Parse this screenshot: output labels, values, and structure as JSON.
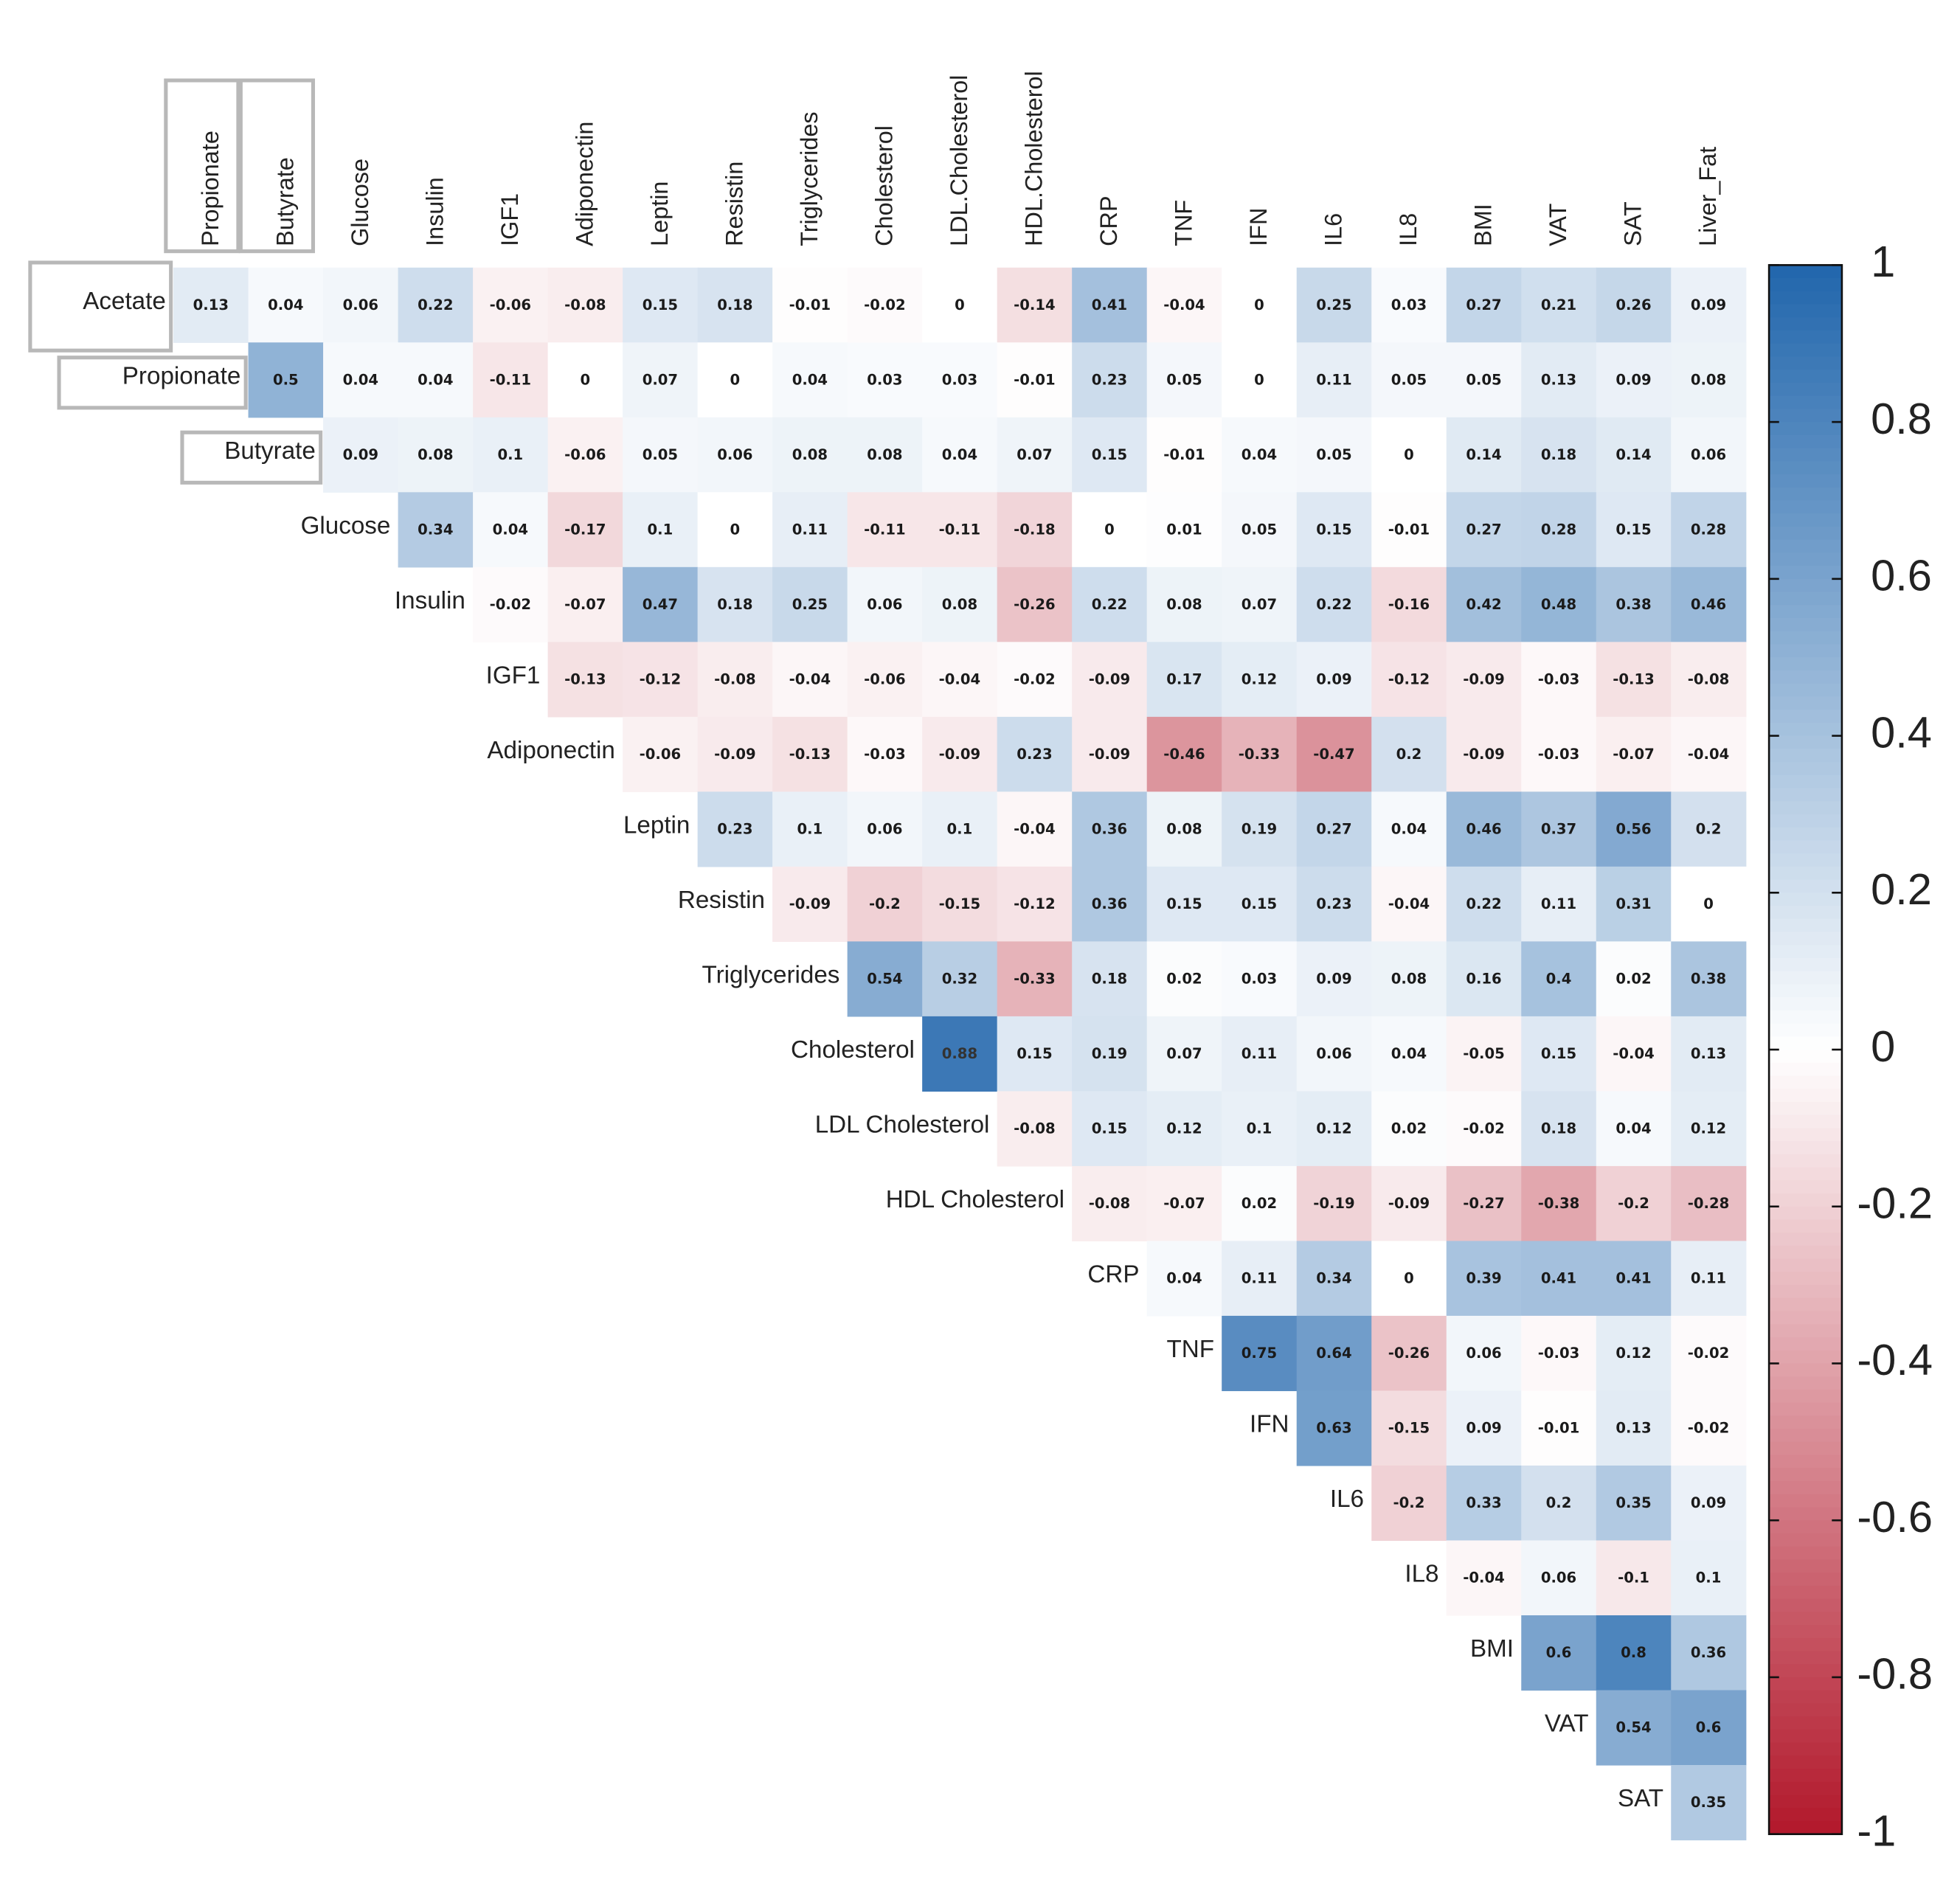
{
  "chart_data": {
    "type": "heatmap",
    "title": "",
    "columns": [
      "Propionate",
      "Butyrate",
      "Glucose",
      "Insulin",
      "IGF1",
      "Adiponectin",
      "Leptin",
      "Resistin",
      "Triglycerides",
      "Cholesterol",
      "LDL.Cholesterol",
      "HDL.Cholesterol",
      "CRP",
      "TNF",
      "IFN",
      "IL6",
      "IL8",
      "BMI",
      "VAT",
      "SAT",
      "Liver_Fat"
    ],
    "rows": [
      "Acetate",
      "Propionate",
      "Butyrate",
      "Glucose",
      "Insulin",
      "IGF1",
      "Adiponectin",
      "Leptin",
      "Resistin",
      "Triglycerides",
      "Cholesterol",
      "LDL Cholesterol",
      "HDL Cholesterol",
      "CRP",
      "TNF",
      "IFN",
      "IL6",
      "IL8",
      "BMI",
      "VAT",
      "SAT"
    ],
    "boxed_labels": {
      "columns": [
        "Propionate",
        "Butyrate"
      ],
      "rows": [
        "Acetate",
        "Propionate",
        "Butyrate"
      ]
    },
    "values": [
      [
        "0.13",
        "0.04",
        "0.06",
        "0.22",
        "-0.06",
        "-0.08",
        "0.15",
        "0.18",
        "-0.01",
        "-0.02",
        "0",
        "-0.14",
        "0.41",
        "-0.04",
        "0",
        "0.25",
        "0.03",
        "0.27",
        "0.21",
        "0.26",
        "0.09"
      ],
      [
        "0.5",
        "0.04",
        "0.04",
        "-0.11",
        "0",
        "0.07",
        "0",
        "0.04",
        "0.03",
        "0.03",
        "-0.01",
        "0.23",
        "0.05",
        "0",
        "0.11",
        "0.05",
        "0.05",
        "0.13",
        "0.09",
        "0.08"
      ],
      [
        "0.09",
        "0.08",
        "0.1",
        "-0.06",
        "0.05",
        "0.06",
        "0.08",
        "0.08",
        "0.04",
        "0.07",
        "0.15",
        "-0.01",
        "0.04",
        "0.05",
        "0",
        "0.14",
        "0.18",
        "0.14",
        "0.06"
      ],
      [
        "0.34",
        "0.04",
        "-0.17",
        "0.1",
        "0",
        "0.11",
        "-0.11",
        "-0.11",
        "-0.18",
        "0",
        "0.01",
        "0.05",
        "0.15",
        "-0.01",
        "0.27",
        "0.28",
        "0.15",
        "0.28"
      ],
      [
        "-0.02",
        "-0.07",
        "0.47",
        "0.18",
        "0.25",
        "0.06",
        "0.08",
        "-0.26",
        "0.22",
        "0.08",
        "0.07",
        "0.22",
        "-0.16",
        "0.42",
        "0.48",
        "0.38",
        "0.46"
      ],
      [
        "-0.13",
        "-0.12",
        "-0.08",
        "-0.04",
        "-0.06",
        "-0.04",
        "-0.02",
        "-0.09",
        "0.17",
        "0.12",
        "0.09",
        "-0.12",
        "-0.09",
        "-0.03",
        "-0.13",
        "-0.08"
      ],
      [
        "-0.06",
        "-0.09",
        "-0.13",
        "-0.03",
        "-0.09",
        "0.23",
        "-0.09",
        "-0.46",
        "-0.33",
        "-0.47",
        "0.2",
        "-0.09",
        "-0.03",
        "-0.07",
        "-0.04"
      ],
      [
        "0.23",
        "0.1",
        "0.06",
        "0.1",
        "-0.04",
        "0.36",
        "0.08",
        "0.19",
        "0.27",
        "0.04",
        "0.46",
        "0.37",
        "0.56",
        "0.2"
      ],
      [
        "-0.09",
        "-0.2",
        "-0.15",
        "-0.12",
        "0.36",
        "0.15",
        "0.15",
        "0.23",
        "-0.04",
        "0.22",
        "0.11",
        "0.31",
        "0"
      ],
      [
        "0.54",
        "0.32",
        "-0.33",
        "0.18",
        "0.02",
        "0.03",
        "0.09",
        "0.08",
        "0.16",
        "0.4",
        "0.02",
        "0.38"
      ],
      [
        "0.88",
        "0.15",
        "0.19",
        "0.07",
        "0.11",
        "0.06",
        "0.04",
        "-0.05",
        "0.15",
        "-0.04",
        "0.13"
      ],
      [
        "-0.08",
        "0.15",
        "0.12",
        "0.1",
        "0.12",
        "0.02",
        "-0.02",
        "0.18",
        "0.04",
        "0.12"
      ],
      [
        "-0.08",
        "-0.07",
        "0.02",
        "-0.19",
        "-0.09",
        "-0.27",
        "-0.38",
        "-0.2",
        "-0.28"
      ],
      [
        "0.04",
        "0.11",
        "0.34",
        "0",
        "0.39",
        "0.41",
        "0.41",
        "0.11"
      ],
      [
        "0.75",
        "0.64",
        "-0.26",
        "0.06",
        "-0.03",
        "0.12",
        "-0.02"
      ],
      [
        "0.63",
        "-0.15",
        "0.09",
        "-0.01",
        "0.13",
        "-0.02"
      ],
      [
        "-0.2",
        "0.33",
        "0.2",
        "0.35",
        "0.09"
      ],
      [
        "-0.04",
        "0.06",
        "-0.1",
        "0.1"
      ],
      [
        "0.6",
        "0.8",
        "0.36"
      ],
      [
        "0.54",
        "0.6"
      ],
      [
        "0.35"
      ]
    ],
    "colorbar": {
      "range": [
        -1,
        1
      ],
      "ticks": [
        "1",
        "0.8",
        "0.6",
        "0.4",
        "0.2",
        "0",
        "-0.2",
        "-0.4",
        "-0.6",
        "-0.8",
        "-1"
      ]
    },
    "colors": {
      "negative": "#b2182b",
      "mid": "#ffffff",
      "positive": "#2166ac",
      "box_border": "#b8b8b8",
      "text": "#222222"
    }
  }
}
